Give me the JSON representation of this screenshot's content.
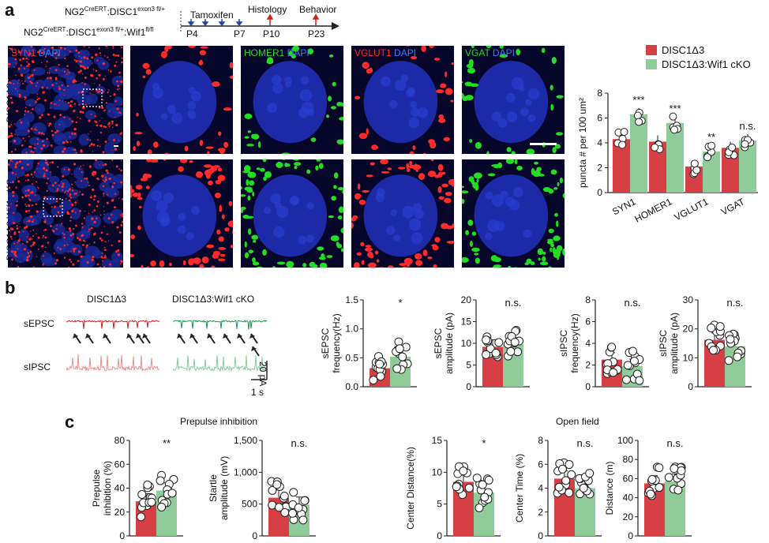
{
  "panel_labels": {
    "a": "a",
    "b": "b",
    "c": "c"
  },
  "timeline": {
    "genotype1_pre": "NG2",
    "genotype1_sup": "CreERT",
    "genotype1_mid": ":DISC1",
    "genotype1_sup2": "exon3 fl/+",
    "genotype2_pre": "NG2",
    "genotype2_sup": "CreERT",
    "genotype2_mid": ":DISC1",
    "genotype2_sup2": "exon3 fl/+",
    "genotype2_mid2": ":Wif1",
    "genotype2_sup3": "fl/fl",
    "tamoxifen": "Tamoxifen",
    "histology": "Histology",
    "behavior": "Behavior",
    "days": [
      "P4",
      "P7",
      "P10",
      "P23"
    ]
  },
  "micrographs": {
    "row_labels": [
      "DISC1Δ3",
      "DISC1Δ3:Wif1 cKO"
    ],
    "columns": [
      {
        "label_a": "SYN1",
        "label_b": "DAPI",
        "color_a": "#ff2a2a"
      },
      {
        "label_a": "",
        "label_b": "",
        "color_a": "#ff2a2a"
      },
      {
        "label_a": "HOMER1",
        "label_b": "DAPI",
        "color_a": "#22dd22"
      },
      {
        "label_a": "VGLUT1",
        "label_b": "DAPI",
        "color_a": "#ff2a2a"
      },
      {
        "label_a": "VGAT",
        "label_b": "DAPI",
        "color_a": "#22dd22"
      }
    ]
  },
  "legend": {
    "items": [
      {
        "label": "DISC1Δ3",
        "color": "#d64045"
      },
      {
        "label": "DISC1Δ3:Wif1 cKO",
        "color": "#8fcc99"
      }
    ]
  },
  "colors": {
    "ctrl": "#d64045",
    "cko": "#8fcc99",
    "ctrl_light": "#e8898d",
    "cko_light": "#9fd6a8"
  },
  "chart_data": [
    {
      "id": "puncta",
      "type": "bar",
      "ylabel": "puncta # per 100 um²",
      "ylim": [
        0,
        8
      ],
      "yticks": [
        0,
        2,
        4,
        6,
        8
      ],
      "categories": [
        "SYN1",
        "HOMER1",
        "VGLUT1",
        "VGAT"
      ],
      "series": [
        {
          "name": "DISC1Δ3",
          "values": [
            4.3,
            4.1,
            2.1,
            3.6
          ]
        },
        {
          "name": "DISC1Δ3:Wif1 cKO",
          "values": [
            6.3,
            5.6,
            3.3,
            4.2
          ]
        }
      ],
      "significance": [
        "***",
        "***",
        "**",
        "n.s."
      ]
    },
    {
      "id": "sepsc_freq",
      "type": "bar",
      "ylabel": "sEPSC frequency(Hz)",
      "ylim": [
        0,
        1.5
      ],
      "yticks": [
        "0.0",
        "0.5",
        "1.0",
        "1.5"
      ],
      "series": [
        {
          "name": "DISC1Δ3",
          "values": [
            0.32
          ]
        },
        {
          "name": "DISC1Δ3:Wif1 cKO",
          "values": [
            0.52
          ]
        }
      ],
      "significance": "*"
    },
    {
      "id": "sepsc_amp",
      "type": "bar",
      "ylabel": "sEPSC amplitude (pA)",
      "ylim": [
        0,
        20
      ],
      "yticks": [
        "0",
        "5",
        "10",
        "15",
        "20"
      ],
      "series": [
        {
          "name": "DISC1Δ3",
          "values": [
            9.2
          ]
        },
        {
          "name": "DISC1Δ3:Wif1 cKO",
          "values": [
            9.8
          ]
        }
      ],
      "significance": "n.s."
    },
    {
      "id": "sipsc_freq",
      "type": "bar",
      "ylabel": "sIPSC frequency(Hz)",
      "ylim": [
        0,
        8
      ],
      "yticks": [
        "0",
        "2",
        "4",
        "6",
        "8"
      ],
      "series": [
        {
          "name": "DISC1Δ3",
          "values": [
            2.5
          ]
        },
        {
          "name": "DISC1Δ3:Wif1 cKO",
          "values": [
            1.9
          ]
        }
      ],
      "significance": "n.s."
    },
    {
      "id": "sipsc_amp",
      "type": "bar",
      "ylabel": "sIPSC amplitude (pA)",
      "ylim": [
        0,
        30
      ],
      "yticks": [
        "0",
        "10",
        "20",
        "30"
      ],
      "series": [
        {
          "name": "DISC1Δ3",
          "values": [
            16.2
          ]
        },
        {
          "name": "DISC1Δ3:Wif1 cKO",
          "values": [
            14.0
          ]
        }
      ],
      "significance": "n.s."
    },
    {
      "id": "ppi",
      "type": "bar",
      "ylabel": "Prepulse inhibition (%)",
      "ylim": [
        0,
        80
      ],
      "yticks": [
        "0",
        "20",
        "40",
        "60",
        "80"
      ],
      "series": [
        {
          "name": "DISC1Δ3",
          "values": [
            29
          ]
        },
        {
          "name": "DISC1Δ3:Wif1 cKO",
          "values": [
            38
          ]
        }
      ],
      "significance": "**"
    },
    {
      "id": "startle",
      "type": "bar",
      "ylabel": "Startle amplitude (mV)",
      "ylim": [
        0,
        1500
      ],
      "yticks": [
        "0",
        "500",
        "1,000",
        "1,500"
      ],
      "series": [
        {
          "name": "DISC1Δ3",
          "values": [
            600
          ]
        },
        {
          "name": "DISC1Δ3:Wif1 cKO",
          "values": [
            490
          ]
        }
      ],
      "significance": "n.s."
    },
    {
      "id": "center_dist",
      "type": "bar",
      "ylabel": "Center Distance(%)",
      "ylim": [
        0,
        15
      ],
      "yticks": [
        "0",
        "5",
        "10",
        "15"
      ],
      "series": [
        {
          "name": "DISC1Δ3",
          "values": [
            8.5
          ]
        },
        {
          "name": "DISC1Δ3:Wif1 cKO",
          "values": [
            6.8
          ]
        }
      ],
      "significance": "*"
    },
    {
      "id": "center_time",
      "type": "bar",
      "ylabel": "Center Time (%)",
      "ylim": [
        0,
        8
      ],
      "yticks": [
        "0",
        "2",
        "4",
        "6",
        "8"
      ],
      "series": [
        {
          "name": "DISC1Δ3",
          "values": [
            4.8
          ]
        },
        {
          "name": "DISC1Δ3:Wif1 cKO",
          "values": [
            4.0
          ]
        }
      ],
      "significance": "n.s."
    },
    {
      "id": "distance",
      "type": "bar",
      "ylabel": "Distance (m)",
      "ylim": [
        0,
        100
      ],
      "yticks": [
        "0",
        "20",
        "40",
        "60",
        "80",
        "100"
      ],
      "series": [
        {
          "name": "DISC1Δ3",
          "values": [
            55
          ]
        },
        {
          "name": "DISC1Δ3:Wif1 cKO",
          "values": [
            57
          ]
        }
      ],
      "significance": "n.s."
    }
  ],
  "traces": {
    "col1": "DISC1Δ3",
    "col2": "DISC1Δ3:Wif1 cKO",
    "row1": "sEPSC",
    "row2": "sIPSC",
    "scale_y": "20 pA",
    "scale_x": "1 s"
  },
  "section_titles": {
    "ppi": "Prepulse inhibition",
    "openfield": "Open field"
  }
}
